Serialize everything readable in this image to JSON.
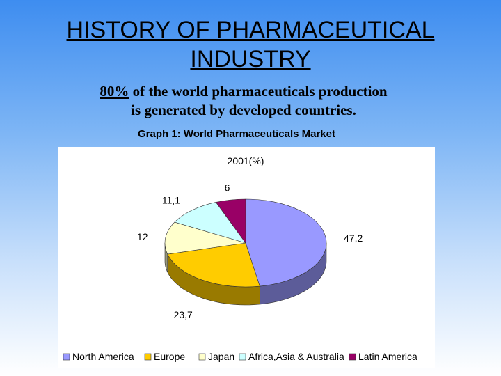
{
  "slide": {
    "title_line1": "HISTORY OF PHARMACEUTICAL",
    "title_line2": "INDUSTRY",
    "subtitle_pct": "80%",
    "subtitle_rest_line1": " of the world pharmaceuticals production",
    "subtitle_line2": "is generated by developed countries.",
    "graph_caption": "Graph 1: World Pharmaceuticals Market"
  },
  "chart_data": {
    "type": "pie",
    "title": "2001(%)",
    "legend_position": "bottom",
    "categories": [
      "North America",
      "Europe",
      "Japan",
      "Africa,Asia & Australia",
      "Latin America"
    ],
    "values": [
      47.2,
      23.7,
      12,
      11.1,
      6
    ],
    "value_labels": [
      "47,2",
      "23,7",
      "12",
      "11,1",
      "6"
    ],
    "colors": [
      "#9999ff",
      "#ffcc00",
      "#ffffcc",
      "#ccffff",
      "#990066"
    ]
  }
}
